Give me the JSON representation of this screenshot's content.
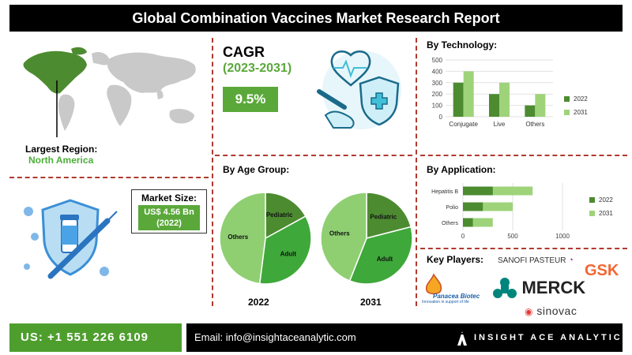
{
  "title": "Global Combination Vaccines Market  Research Report",
  "region": {
    "label": "Largest Region:",
    "value": "North America"
  },
  "cagr": {
    "label": "CAGR",
    "period": "(2023-2031)",
    "value": "9.5%"
  },
  "market_size": {
    "label": "Market Size:",
    "value": "US$ 4.56 Bn",
    "year": "(2022)"
  },
  "age_group": {
    "label": "By Age Group:"
  },
  "technology": {
    "label": "By Technology:"
  },
  "application": {
    "label": "By Application:"
  },
  "key_players": {
    "label": "Key Players:",
    "names": [
      "SANOFI PASTEUR",
      "GSK",
      "Panacea Biotec",
      "MERCK",
      "sinovac"
    ],
    "panacea_tagline": "Innovation in support of life"
  },
  "footer": {
    "phone": "US: +1 551 226 6109",
    "email": "Email: info@insightaceanalytic.com",
    "brand": "INSIGHT ACE ANALYTIC"
  },
  "colors": {
    "dark_green": "#4d8b31",
    "light_green": "#9ed37a",
    "accent_green": "#5aa83a",
    "divider_red": "#b03a2e"
  },
  "chart_data": [
    {
      "type": "bar",
      "title": "By Technology:",
      "categories": [
        "Conjugate",
        "Live",
        "Others"
      ],
      "series": [
        {
          "name": "2022",
          "values": [
            300,
            200,
            100
          ]
        },
        {
          "name": "2031",
          "values": [
            400,
            300,
            200
          ]
        }
      ],
      "ylim": [
        0,
        500
      ],
      "yticks": [
        0,
        100,
        200,
        300,
        400,
        500
      ],
      "legend": "right"
    },
    {
      "type": "bar",
      "orientation": "horizontal",
      "title": "By Application:",
      "categories": [
        "Hepatitis B",
        "Polio",
        "Others"
      ],
      "series": [
        {
          "name": "2022",
          "values": [
            300,
            200,
            100
          ]
        },
        {
          "name": "2031",
          "values": [
            700,
            500,
            300
          ]
        }
      ],
      "xlim": [
        0,
        1000
      ],
      "xticks": [
        0,
        500,
        1000
      ],
      "legend": "right"
    },
    {
      "type": "pie",
      "title": "2022",
      "labels": [
        "Pediatric",
        "Adult",
        "Others"
      ],
      "values": [
        17,
        35,
        48
      ]
    },
    {
      "type": "pie",
      "title": "2031",
      "labels": [
        "Pediatric",
        "Adult",
        "Others"
      ],
      "values": [
        21,
        35,
        44
      ]
    }
  ]
}
